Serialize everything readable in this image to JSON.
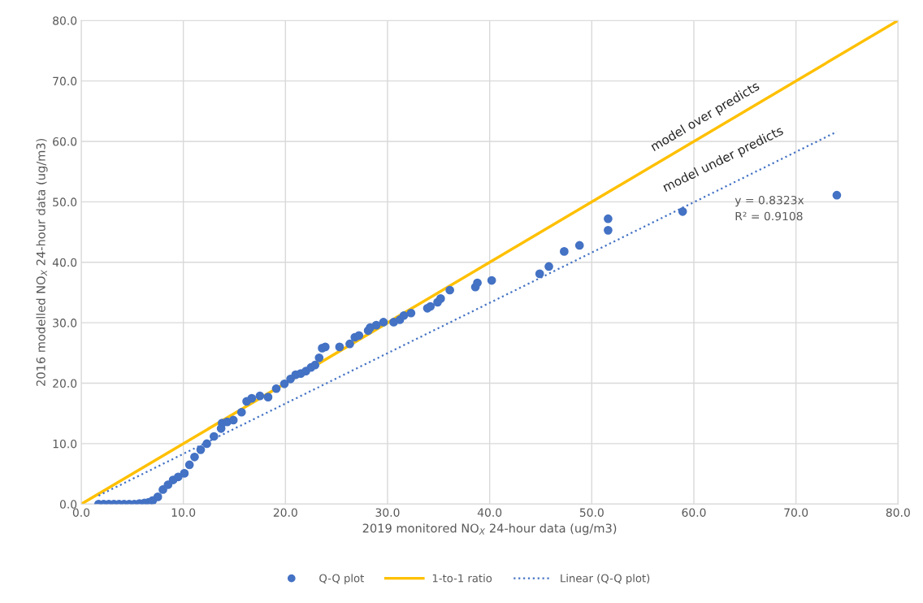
{
  "chart_data": {
    "type": "scatter",
    "xlabel": "2019 monitored NO$_{X}$ 24-hour data (ug/m3)",
    "ylabel": "2016 modelled NO$_{X}$ 24-hour data (ug/m3)",
    "xlim": [
      0,
      80
    ],
    "ylim": [
      0,
      80
    ],
    "xticks": [
      {
        "value": 0,
        "label": "0.0"
      },
      {
        "value": 10,
        "label": "10.0"
      },
      {
        "value": 20,
        "label": "20.0"
      },
      {
        "value": 30,
        "label": "30.0"
      },
      {
        "value": 40,
        "label": "40.0"
      },
      {
        "value": 50,
        "label": "50.0"
      },
      {
        "value": 60,
        "label": "60.0"
      },
      {
        "value": 70,
        "label": "70.0"
      },
      {
        "value": 80,
        "label": "80.0"
      }
    ],
    "yticks": [
      {
        "value": 0,
        "label": "0.0"
      },
      {
        "value": 10,
        "label": "10.0"
      },
      {
        "value": 20,
        "label": "20.0"
      },
      {
        "value": 30,
        "label": "30.0"
      },
      {
        "value": 40,
        "label": "40.0"
      },
      {
        "value": 50,
        "label": "50.0"
      },
      {
        "value": 60,
        "label": "60.0"
      },
      {
        "value": 70,
        "label": "70.0"
      },
      {
        "value": 80,
        "label": "80.0"
      }
    ],
    "grid": true,
    "legend": "bottom",
    "series": [
      {
        "name": "Q-Q plot",
        "marker": "circle",
        "color": "#4472c4",
        "x": [
          1.7,
          2.2,
          2.7,
          3.2,
          3.7,
          4.2,
          4.7,
          5.2,
          5.7,
          6.2,
          6.6,
          7.0,
          7.5,
          8.0,
          8.5,
          9.0,
          9.5,
          10.1,
          10.6,
          11.1,
          11.7,
          12.3,
          13.0,
          13.7,
          13.8,
          14.3,
          14.9,
          15.7,
          16.2,
          16.7,
          17.5,
          18.3,
          19.1,
          19.9,
          20.5,
          21.0,
          21.5,
          22.0,
          22.5,
          22.9,
          23.3,
          23.6,
          23.9,
          25.3,
          26.3,
          26.8,
          27.2,
          28.1,
          28.3,
          28.9,
          29.6,
          30.6,
          31.2,
          31.6,
          32.3,
          33.9,
          34.2,
          34.9,
          35.2,
          36.1,
          38.6,
          38.8,
          40.2,
          44.9,
          45.8,
          47.3,
          48.8,
          51.6,
          51.6,
          58.9,
          74.0
        ],
        "values": [
          0,
          0,
          0,
          0,
          0,
          0,
          0,
          0,
          0.1,
          0.2,
          0.3,
          0.6,
          1.2,
          2.4,
          3.2,
          4.0,
          4.5,
          5.1,
          6.5,
          7.8,
          9.0,
          10.0,
          11.2,
          12.5,
          13.4,
          13.6,
          13.9,
          15.2,
          17.0,
          17.5,
          17.9,
          17.7,
          19.1,
          19.9,
          20.7,
          21.4,
          21.6,
          22.0,
          22.6,
          23.0,
          24.2,
          25.8,
          26.0,
          26.0,
          26.5,
          27.6,
          27.9,
          28.7,
          29.2,
          29.6,
          30.1,
          30.1,
          30.5,
          31.2,
          31.6,
          32.4,
          32.7,
          33.4,
          34.0,
          35.4,
          35.9,
          36.6,
          37.0,
          38.1,
          39.3,
          41.8,
          42.8,
          45.3,
          47.2,
          48.4,
          51.1
        ]
      },
      {
        "name": "1-to-1 ratio",
        "type": "line",
        "marker": "none",
        "line_style": "solid",
        "color": "#ffc000",
        "x": [
          0,
          80
        ],
        "values": [
          0,
          80
        ]
      },
      {
        "name": "Linear (Q-Q plot)",
        "type": "line",
        "marker": "none",
        "line_style": "dotted",
        "color": "#4472c4",
        "x": [
          1.7,
          74.0
        ],
        "values": [
          1.4,
          61.6
        ]
      }
    ],
    "annotations": [
      "model over predicts",
      "model under predicts",
      "y = 0.8323x\nR² = 0.9108"
    ]
  }
}
